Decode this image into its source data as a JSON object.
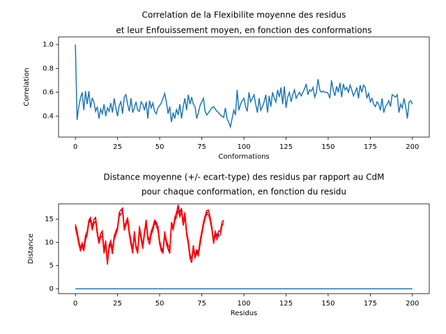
{
  "chart_data": [
    {
      "type": "line",
      "title": [
        "Correlation de la Flexibilite moyenne des residus",
        "et leur Enfouissement moyen, en fonction des conformations"
      ],
      "xlabel": "Conformations",
      "ylabel": "Correlation",
      "xlim": [
        -10,
        210
      ],
      "ylim": [
        0.225,
        1.064
      ],
      "xticks": [
        0,
        25,
        50,
        75,
        100,
        125,
        150,
        175,
        200
      ],
      "yticks": [
        0.4,
        0.6,
        0.8,
        {
          "value": 1,
          "label": "1.0"
        }
      ],
      "series": [
        {
          "color": "#1f77b4",
          "values": [
            1.0,
            0.37,
            0.48,
            0.55,
            0.6,
            0.45,
            0.61,
            0.5,
            0.61,
            0.47,
            0.55,
            0.52,
            0.44,
            0.48,
            0.38,
            0.46,
            0.42,
            0.5,
            0.4,
            0.47,
            0.44,
            0.51,
            0.43,
            0.55,
            0.47,
            0.4,
            0.49,
            0.52,
            0.42,
            0.56,
            0.58,
            0.5,
            0.44,
            0.55,
            0.43,
            0.47,
            0.52,
            0.45,
            0.44,
            0.52,
            0.5,
            0.45,
            0.52,
            0.38,
            0.53,
            0.47,
            0.51,
            0.44,
            0.42,
            0.47,
            0.49,
            0.51,
            0.55,
            0.59,
            0.52,
            0.42,
            0.48,
            0.35,
            0.43,
            0.38,
            0.46,
            0.41,
            0.5,
            0.38,
            0.48,
            0.55,
            0.45,
            0.58,
            0.5,
            0.56,
            0.5,
            0.48,
            0.38,
            0.43,
            0.49,
            0.52,
            0.55,
            0.44,
            0.41,
            0.43,
            0.45,
            0.47,
            0.48,
            0.46,
            0.44,
            0.43,
            0.41,
            0.4,
            0.39,
            0.47,
            0.38,
            0.35,
            0.31,
            0.38,
            0.45,
            0.41,
            0.62,
            0.45,
            0.5,
            0.53,
            0.55,
            0.48,
            0.44,
            0.6,
            0.52,
            0.55,
            0.58,
            0.5,
            0.43,
            0.55,
            0.45,
            0.48,
            0.52,
            0.58,
            0.43,
            0.57,
            0.48,
            0.6,
            0.55,
            0.52,
            0.62,
            0.56,
            0.64,
            0.5,
            0.65,
            0.47,
            0.56,
            0.6,
            0.52,
            0.58,
            0.62,
            0.55,
            0.58,
            0.6,
            0.57,
            0.6,
            0.63,
            0.67,
            0.58,
            0.62,
            0.61,
            0.64,
            0.56,
            0.6,
            0.71,
            0.62,
            0.6,
            0.61,
            0.6,
            0.6,
            0.59,
            0.55,
            0.7,
            0.62,
            0.57,
            0.65,
            0.6,
            0.68,
            0.56,
            0.67,
            0.62,
            0.64,
            0.6,
            0.66,
            0.62,
            0.57,
            0.6,
            0.64,
            0.55,
            0.66,
            0.6,
            0.66,
            0.64,
            0.55,
            0.59,
            0.52,
            0.55,
            0.5,
            0.48,
            0.52,
            0.5,
            0.45,
            0.55,
            0.43,
            0.48,
            0.5,
            0.53,
            0.48,
            0.58,
            0.57,
            0.56,
            0.58,
            0.43,
            0.5,
            0.47,
            0.55,
            0.48,
            0.38,
            0.52,
            0.53,
            0.5
          ]
        }
      ]
    },
    {
      "type": "line",
      "title": [
        "Distance moyenne (+/- ecart-type) des residus par rapport au CdM",
        "pour chaque conformation, en fonction du residu"
      ],
      "xlabel": "Residus",
      "ylabel": "Distance",
      "xlim": [
        -10,
        210
      ],
      "ylim": [
        -1.05,
        18.3
      ],
      "xticks": [
        0,
        25,
        50,
        75,
        100,
        125,
        150,
        175,
        200
      ],
      "yticks": [
        0,
        5,
        10,
        15
      ],
      "series": [
        {
          "color": "#1f77b4",
          "values": [
            0,
            0,
            0,
            0,
            0,
            0,
            0,
            0,
            0,
            0,
            0,
            0,
            0,
            0,
            0,
            0,
            0,
            0,
            0,
            0,
            0,
            0,
            0,
            0,
            0,
            0,
            0,
            0,
            0,
            0,
            0,
            0,
            0,
            0,
            0,
            0,
            0,
            0,
            0,
            0,
            0,
            0,
            0,
            0,
            0,
            0,
            0,
            0,
            0,
            0,
            0,
            0,
            0,
            0,
            0,
            0,
            0,
            0,
            0,
            0,
            0,
            0,
            0,
            0,
            0,
            0,
            0,
            0,
            0,
            0,
            0,
            0,
            0,
            0,
            0,
            0,
            0,
            0,
            0,
            0,
            0,
            0,
            0,
            0,
            0,
            0,
            0,
            0,
            0,
            0,
            0,
            0,
            0,
            0,
            0,
            0,
            0,
            0,
            0,
            0,
            0,
            0,
            0,
            0,
            0,
            0,
            0,
            0,
            0,
            0,
            0,
            0,
            0,
            0,
            0,
            0,
            0,
            0,
            0,
            0,
            0,
            0,
            0,
            0,
            0,
            0,
            0,
            0,
            0,
            0,
            0,
            0,
            0,
            0,
            0,
            0,
            0,
            0,
            0,
            0,
            0,
            0,
            0,
            0,
            0,
            0,
            0,
            0,
            0,
            0,
            0,
            0,
            0,
            0,
            0,
            0,
            0,
            0,
            0,
            0,
            0,
            0,
            0,
            0,
            0,
            0,
            0,
            0,
            0,
            0,
            0,
            0,
            0,
            0,
            0,
            0,
            0,
            0,
            0,
            0,
            0,
            0,
            0,
            0,
            0,
            0,
            0,
            0,
            0,
            0,
            0,
            0,
            0,
            0,
            0,
            0,
            0,
            0,
            0,
            0,
            0
          ]
        },
        {
          "color": "#0000ff",
          "dashed": true,
          "error_color": "#ff0000",
          "values": [
            13.5,
            12,
            10,
            8.5,
            9.5,
            8.5,
            11,
            12,
            14.5,
            15,
            13,
            14.5,
            15,
            12,
            10,
            11.5,
            12,
            8,
            10,
            5.5,
            9,
            10,
            8,
            11,
            12,
            13,
            16,
            16.5,
            17,
            13,
            14,
            15,
            12,
            10,
            8,
            12,
            9,
            8,
            13,
            11,
            9,
            12,
            14.5,
            11,
            10,
            12,
            13,
            14.5,
            14,
            13,
            10,
            8.5,
            8,
            12,
            10,
            9,
            8,
            14,
            13,
            15,
            16,
            17.5,
            16,
            17,
            14,
            16,
            12,
            10,
            7,
            6,
            9,
            7,
            8,
            7.5,
            10,
            12,
            14,
            15.5,
            16.5,
            16.5,
            15,
            13,
            10,
            12,
            11,
            12,
            12,
            14,
            14.5
          ],
          "errors": [
            0.4,
            0.5,
            0.4,
            0.3,
            0.4,
            0.4,
            0.5,
            0.4,
            0.3,
            0.4,
            0.4,
            0.5,
            0.4,
            0.4,
            0.3,
            0.4,
            0.5,
            0.4,
            0.4,
            0.3,
            0.4,
            0.4,
            0.5,
            0.4,
            0.4,
            0.3,
            0.4,
            0.5,
            0.4,
            0.4,
            0.3,
            0.4,
            0.4,
            0.5,
            0.4,
            0.4,
            0.3,
            0.4,
            0.5,
            0.4,
            0.4,
            0.3,
            0.4,
            0.4,
            0.5,
            0.4,
            0.4,
            0.3,
            0.4,
            0.5,
            0.4,
            0.4,
            0.3,
            0.4,
            0.4,
            0.5,
            0.4,
            0.4,
            0.3,
            0.4,
            0.5,
            0.6,
            0.5,
            0.4,
            0.4,
            0.5,
            0.4,
            0.4,
            0.5,
            0.4,
            0.4,
            0.3,
            0.4,
            0.4,
            0.5,
            0.4,
            0.4,
            0.3,
            0.4,
            0.5,
            0.4,
            0.4,
            0.3,
            0.4,
            0.4,
            0.5,
            0.4,
            0.4,
            0.3
          ]
        }
      ]
    }
  ]
}
